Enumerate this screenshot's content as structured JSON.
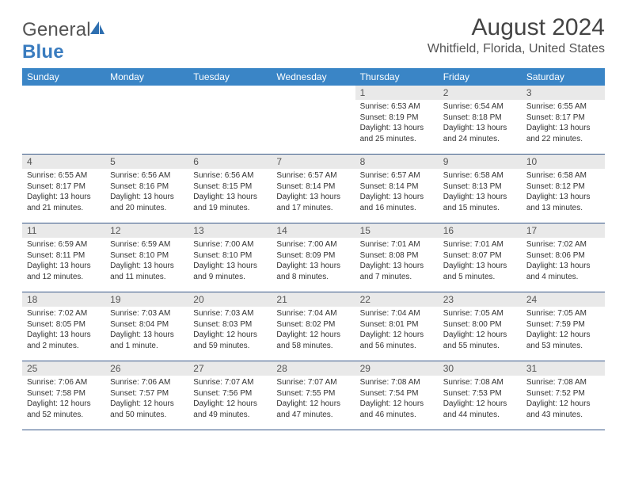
{
  "brand": {
    "part1": "General",
    "part2": "Blue"
  },
  "title": "August 2024",
  "location": "Whitfield, Florida, United States",
  "colors": {
    "header_bg": "#3a85c6",
    "header_text": "#ffffff",
    "daynum_bg": "#e9e9e9",
    "row_border": "#3a5a8a",
    "logo_blue": "#2e6fb0"
  },
  "dayNames": [
    "Sunday",
    "Monday",
    "Tuesday",
    "Wednesday",
    "Thursday",
    "Friday",
    "Saturday"
  ],
  "weeks": [
    [
      {
        "n": "",
        "sr": "",
        "ss": "",
        "dl": ""
      },
      {
        "n": "",
        "sr": "",
        "ss": "",
        "dl": ""
      },
      {
        "n": "",
        "sr": "",
        "ss": "",
        "dl": ""
      },
      {
        "n": "",
        "sr": "",
        "ss": "",
        "dl": ""
      },
      {
        "n": "1",
        "sr": "Sunrise: 6:53 AM",
        "ss": "Sunset: 8:19 PM",
        "dl": "Daylight: 13 hours and 25 minutes."
      },
      {
        "n": "2",
        "sr": "Sunrise: 6:54 AM",
        "ss": "Sunset: 8:18 PM",
        "dl": "Daylight: 13 hours and 24 minutes."
      },
      {
        "n": "3",
        "sr": "Sunrise: 6:55 AM",
        "ss": "Sunset: 8:17 PM",
        "dl": "Daylight: 13 hours and 22 minutes."
      }
    ],
    [
      {
        "n": "4",
        "sr": "Sunrise: 6:55 AM",
        "ss": "Sunset: 8:17 PM",
        "dl": "Daylight: 13 hours and 21 minutes."
      },
      {
        "n": "5",
        "sr": "Sunrise: 6:56 AM",
        "ss": "Sunset: 8:16 PM",
        "dl": "Daylight: 13 hours and 20 minutes."
      },
      {
        "n": "6",
        "sr": "Sunrise: 6:56 AM",
        "ss": "Sunset: 8:15 PM",
        "dl": "Daylight: 13 hours and 19 minutes."
      },
      {
        "n": "7",
        "sr": "Sunrise: 6:57 AM",
        "ss": "Sunset: 8:14 PM",
        "dl": "Daylight: 13 hours and 17 minutes."
      },
      {
        "n": "8",
        "sr": "Sunrise: 6:57 AM",
        "ss": "Sunset: 8:14 PM",
        "dl": "Daylight: 13 hours and 16 minutes."
      },
      {
        "n": "9",
        "sr": "Sunrise: 6:58 AM",
        "ss": "Sunset: 8:13 PM",
        "dl": "Daylight: 13 hours and 15 minutes."
      },
      {
        "n": "10",
        "sr": "Sunrise: 6:58 AM",
        "ss": "Sunset: 8:12 PM",
        "dl": "Daylight: 13 hours and 13 minutes."
      }
    ],
    [
      {
        "n": "11",
        "sr": "Sunrise: 6:59 AM",
        "ss": "Sunset: 8:11 PM",
        "dl": "Daylight: 13 hours and 12 minutes."
      },
      {
        "n": "12",
        "sr": "Sunrise: 6:59 AM",
        "ss": "Sunset: 8:10 PM",
        "dl": "Daylight: 13 hours and 11 minutes."
      },
      {
        "n": "13",
        "sr": "Sunrise: 7:00 AM",
        "ss": "Sunset: 8:10 PM",
        "dl": "Daylight: 13 hours and 9 minutes."
      },
      {
        "n": "14",
        "sr": "Sunrise: 7:00 AM",
        "ss": "Sunset: 8:09 PM",
        "dl": "Daylight: 13 hours and 8 minutes."
      },
      {
        "n": "15",
        "sr": "Sunrise: 7:01 AM",
        "ss": "Sunset: 8:08 PM",
        "dl": "Daylight: 13 hours and 7 minutes."
      },
      {
        "n": "16",
        "sr": "Sunrise: 7:01 AM",
        "ss": "Sunset: 8:07 PM",
        "dl": "Daylight: 13 hours and 5 minutes."
      },
      {
        "n": "17",
        "sr": "Sunrise: 7:02 AM",
        "ss": "Sunset: 8:06 PM",
        "dl": "Daylight: 13 hours and 4 minutes."
      }
    ],
    [
      {
        "n": "18",
        "sr": "Sunrise: 7:02 AM",
        "ss": "Sunset: 8:05 PM",
        "dl": "Daylight: 13 hours and 2 minutes."
      },
      {
        "n": "19",
        "sr": "Sunrise: 7:03 AM",
        "ss": "Sunset: 8:04 PM",
        "dl": "Daylight: 13 hours and 1 minute."
      },
      {
        "n": "20",
        "sr": "Sunrise: 7:03 AM",
        "ss": "Sunset: 8:03 PM",
        "dl": "Daylight: 12 hours and 59 minutes."
      },
      {
        "n": "21",
        "sr": "Sunrise: 7:04 AM",
        "ss": "Sunset: 8:02 PM",
        "dl": "Daylight: 12 hours and 58 minutes."
      },
      {
        "n": "22",
        "sr": "Sunrise: 7:04 AM",
        "ss": "Sunset: 8:01 PM",
        "dl": "Daylight: 12 hours and 56 minutes."
      },
      {
        "n": "23",
        "sr": "Sunrise: 7:05 AM",
        "ss": "Sunset: 8:00 PM",
        "dl": "Daylight: 12 hours and 55 minutes."
      },
      {
        "n": "24",
        "sr": "Sunrise: 7:05 AM",
        "ss": "Sunset: 7:59 PM",
        "dl": "Daylight: 12 hours and 53 minutes."
      }
    ],
    [
      {
        "n": "25",
        "sr": "Sunrise: 7:06 AM",
        "ss": "Sunset: 7:58 PM",
        "dl": "Daylight: 12 hours and 52 minutes."
      },
      {
        "n": "26",
        "sr": "Sunrise: 7:06 AM",
        "ss": "Sunset: 7:57 PM",
        "dl": "Daylight: 12 hours and 50 minutes."
      },
      {
        "n": "27",
        "sr": "Sunrise: 7:07 AM",
        "ss": "Sunset: 7:56 PM",
        "dl": "Daylight: 12 hours and 49 minutes."
      },
      {
        "n": "28",
        "sr": "Sunrise: 7:07 AM",
        "ss": "Sunset: 7:55 PM",
        "dl": "Daylight: 12 hours and 47 minutes."
      },
      {
        "n": "29",
        "sr": "Sunrise: 7:08 AM",
        "ss": "Sunset: 7:54 PM",
        "dl": "Daylight: 12 hours and 46 minutes."
      },
      {
        "n": "30",
        "sr": "Sunrise: 7:08 AM",
        "ss": "Sunset: 7:53 PM",
        "dl": "Daylight: 12 hours and 44 minutes."
      },
      {
        "n": "31",
        "sr": "Sunrise: 7:08 AM",
        "ss": "Sunset: 7:52 PM",
        "dl": "Daylight: 12 hours and 43 minutes."
      }
    ]
  ]
}
